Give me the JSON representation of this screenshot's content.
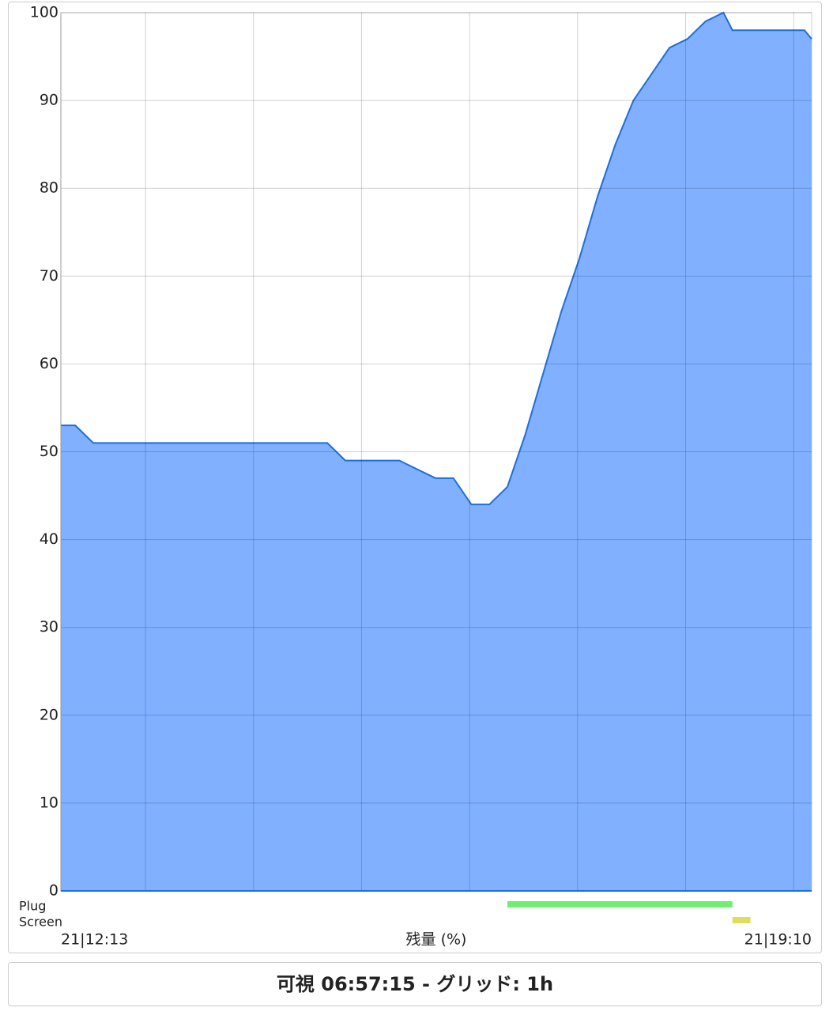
{
  "chart_data": {
    "type": "area",
    "x_label": "残量 (%)",
    "x": [
      "21|12:13",
      "21|12:21",
      "21|12:31",
      "21|14:41",
      "21|14:51",
      "21|15:21",
      "21|15:41",
      "21|15:51",
      "21|16:01",
      "21|16:11",
      "21|16:21",
      "21|16:31",
      "21|16:41",
      "21|16:51",
      "21|17:01",
      "21|17:11",
      "21|17:21",
      "21|17:31",
      "21|17:41",
      "21|17:51",
      "21|18:01",
      "21|18:11",
      "21|18:21",
      "21|18:26",
      "21|19:06",
      "21|19:10"
    ],
    "series": [
      {
        "color": "#80b0ff",
        "line_color": "#1e6fd9",
        "values": [
          53,
          53,
          51,
          51,
          49,
          49,
          47,
          47,
          44,
          44,
          46,
          52,
          59,
          66,
          72,
          79,
          85,
          90,
          93,
          96,
          97,
          99,
          100,
          98,
          98,
          97
        ]
      }
    ],
    "xlim": [
      "21|12:13",
      "21|19:10"
    ],
    "ylim": [
      0,
      100
    ],
    "yticks": [
      0,
      10,
      20,
      30,
      40,
      50,
      60,
      70,
      80,
      90,
      100
    ],
    "grid": true,
    "events": [
      {
        "name": "Plug",
        "color": "#6ef06e",
        "start": "21|16:21",
        "end": "21|18:26"
      },
      {
        "name": "Screen",
        "color": "#dede5a",
        "start": "21|18:26",
        "end": "21|18:36"
      }
    ]
  },
  "footer": "可視 06:57:15 - グリッド: 1h"
}
